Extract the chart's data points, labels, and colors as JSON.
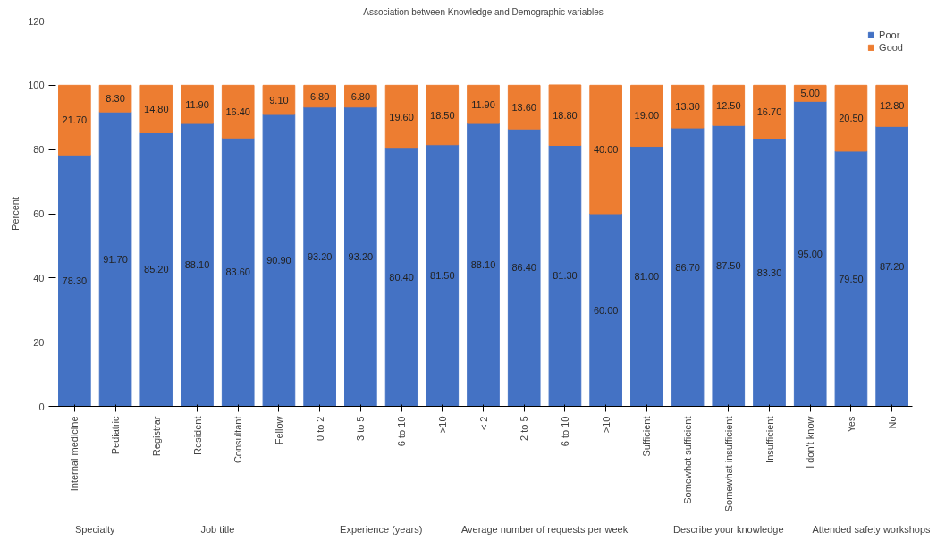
{
  "chart_data": {
    "type": "bar",
    "title": "Association between Knowledge and Demographic variables",
    "ylabel": "Percent",
    "categories": [
      "Internal medicine",
      "Pediatric",
      "Registrar",
      "Resident",
      "Consultant",
      "Fellow",
      "0 to 2",
      "3 to 5",
      "6 to 10",
      ">10",
      "< 2",
      "2 to 5",
      "6 to 10",
      ">10",
      "Sufficient",
      "Somewhat sufficient",
      "Somewhat insufficient",
      "Insufficient",
      "I don't know",
      "Yes",
      "No"
    ],
    "series": [
      {
        "name": "Poor",
        "color": "#4472c4",
        "values": [
          78.3,
          91.7,
          85.2,
          88.1,
          83.6,
          90.9,
          93.2,
          93.2,
          80.4,
          81.5,
          88.1,
          86.4,
          81.3,
          60.0,
          81.0,
          86.7,
          87.5,
          83.3,
          95.0,
          79.5,
          87.2
        ],
        "value_labels": [
          "78.30",
          "91.70",
          "85.20",
          "88.10",
          "83.60",
          "90.90",
          "93.20",
          "93.20",
          "80.40",
          "81.50",
          "88.10",
          "86.40",
          "81.30",
          "60.00",
          "81.00",
          "86.70",
          "87.50",
          "83.30",
          "95.00",
          "79.50",
          "87.20"
        ]
      },
      {
        "name": "Good",
        "color": "#ed7d31",
        "values": [
          21.7,
          8.3,
          14.8,
          11.9,
          16.4,
          9.1,
          6.8,
          6.8,
          19.6,
          18.5,
          11.9,
          13.6,
          18.8,
          40.0,
          19.0,
          13.3,
          12.5,
          16.7,
          5.0,
          20.5,
          12.8
        ],
        "value_labels": [
          "21.70",
          "8.30",
          "14.80",
          "11.90",
          "16.40",
          "9.10",
          "6.80",
          "6.80",
          "19.60",
          "18.50",
          "11.90",
          "13.60",
          "18.80",
          "40.00",
          "19.00",
          "13.30",
          "12.50",
          "16.70",
          "5.00",
          "20.50",
          "12.80"
        ]
      }
    ],
    "stacked": true,
    "ylim": [
      0,
      120
    ],
    "yticks": [
      0,
      20,
      40,
      60,
      80,
      100,
      120
    ],
    "grid": false,
    "legend": "top right",
    "annotations": [
      "Specialty",
      "Job title",
      "Experience (years)",
      "Average number of requests per week",
      "Describe your knowledge",
      "Attended safety workshops"
    ]
  }
}
